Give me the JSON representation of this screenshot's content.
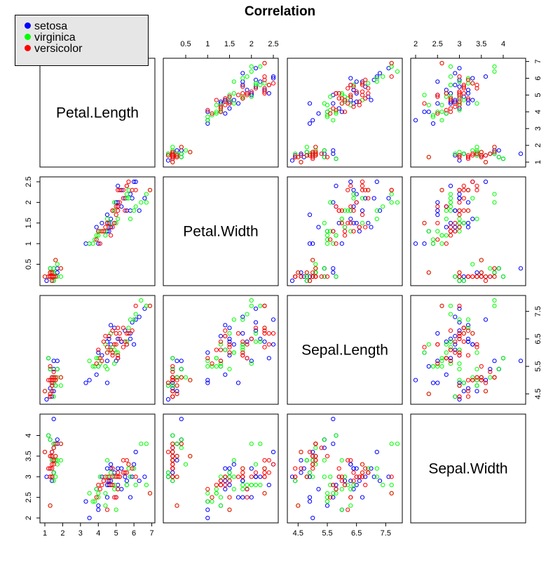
{
  "chart_data": {
    "type": "scatter",
    "title": "Correlation",
    "variables": [
      "Petal.Length",
      "Petal.Width",
      "Sepal.Length",
      "Sepal.Width"
    ],
    "ranges": {
      "Petal.Length": [
        1,
        6.9
      ],
      "Petal.Width": [
        0.1,
        2.5
      ],
      "Sepal.Length": [
        4.3,
        7.9
      ],
      "Sepal.Width": [
        2.0,
        4.4
      ]
    },
    "ticks": {
      "Petal.Length": [
        1,
        2,
        3,
        4,
        5,
        6,
        7
      ],
      "Petal.Width": [
        0.5,
        1.0,
        1.5,
        2.0,
        2.5
      ],
      "Sepal.Length": [
        4.5,
        5.5,
        6.5,
        7.5
      ],
      "Sepal.Width": [
        2.0,
        2.5,
        3.0,
        3.5,
        4.0
      ]
    },
    "grid": false,
    "legend_position": "top-left",
    "series": [
      {
        "name": "setosa",
        "color": "#0000ff",
        "points": [
          [
            1.4,
            0.2,
            5.1,
            3.5
          ],
          [
            1.4,
            0.2,
            4.9,
            3.0
          ],
          [
            1.3,
            0.2,
            4.7,
            3.2
          ],
          [
            1.5,
            0.2,
            4.6,
            3.1
          ],
          [
            1.4,
            0.2,
            5.0,
            3.6
          ],
          [
            1.7,
            0.4,
            5.4,
            3.9
          ],
          [
            1.4,
            0.3,
            4.6,
            3.4
          ],
          [
            1.5,
            0.2,
            5.0,
            3.4
          ],
          [
            1.4,
            0.2,
            4.4,
            2.9
          ],
          [
            1.5,
            0.1,
            4.9,
            3.1
          ],
          [
            1.5,
            0.2,
            5.4,
            3.7
          ],
          [
            1.6,
            0.2,
            4.8,
            3.4
          ],
          [
            1.4,
            0.1,
            4.8,
            3.0
          ],
          [
            1.1,
            0.1,
            4.3,
            3.0
          ],
          [
            1.2,
            0.2,
            5.8,
            4.0
          ],
          [
            1.5,
            0.4,
            5.7,
            4.4
          ],
          [
            1.3,
            0.4,
            5.4,
            3.9
          ],
          [
            1.4,
            0.3,
            5.1,
            3.5
          ],
          [
            1.7,
            0.3,
            5.7,
            3.8
          ],
          [
            1.5,
            0.3,
            5.1,
            3.8
          ],
          [
            4.7,
            1.4,
            7.0,
            3.2
          ],
          [
            4.5,
            1.5,
            6.4,
            3.2
          ],
          [
            4.9,
            1.5,
            6.9,
            3.1
          ],
          [
            4.0,
            1.3,
            5.5,
            2.3
          ],
          [
            4.6,
            1.5,
            6.5,
            2.8
          ],
          [
            4.5,
            1.3,
            5.7,
            2.8
          ],
          [
            4.7,
            1.6,
            6.3,
            3.3
          ],
          [
            3.3,
            1.0,
            4.9,
            2.4
          ],
          [
            4.6,
            1.3,
            6.6,
            2.9
          ],
          [
            3.9,
            1.4,
            5.2,
            2.7
          ],
          [
            3.5,
            1.0,
            5.0,
            2.0
          ],
          [
            4.2,
            1.5,
            5.9,
            3.0
          ],
          [
            4.0,
            1.0,
            6.0,
            2.2
          ],
          [
            4.7,
            1.4,
            6.1,
            2.9
          ],
          [
            6.0,
            2.5,
            6.3,
            3.3
          ],
          [
            5.1,
            1.9,
            5.8,
            2.7
          ],
          [
            5.9,
            2.1,
            7.1,
            3.0
          ],
          [
            5.6,
            1.8,
            6.3,
            2.9
          ],
          [
            5.8,
            2.2,
            6.5,
            3.0
          ],
          [
            6.6,
            2.1,
            7.6,
            3.0
          ],
          [
            4.5,
            1.7,
            4.9,
            2.5
          ],
          [
            6.3,
            1.8,
            7.3,
            2.9
          ],
          [
            5.8,
            1.8,
            6.7,
            2.5
          ],
          [
            6.1,
            2.5,
            7.2,
            3.6
          ],
          [
            5.1,
            2.0,
            6.5,
            3.2
          ],
          [
            5.3,
            1.9,
            6.4,
            2.7
          ],
          [
            5.5,
            2.1,
            6.8,
            3.0
          ],
          [
            5.0,
            2.0,
            5.7,
            2.5
          ],
          [
            5.1,
            2.4,
            5.8,
            2.8
          ],
          [
            5.3,
            2.3,
            6.4,
            3.2
          ]
        ]
      },
      {
        "name": "virginica",
        "color": "#00ff00",
        "points": [
          [
            1.4,
            0.2,
            5.0,
            3.4
          ],
          [
            1.5,
            0.2,
            4.4,
            2.9
          ],
          [
            1.5,
            0.1,
            4.9,
            3.1
          ],
          [
            1.6,
            0.2,
            4.8,
            3.4
          ],
          [
            1.4,
            0.1,
            4.8,
            3.0
          ],
          [
            1.2,
            0.2,
            5.8,
            4.0
          ],
          [
            1.3,
            0.4,
            5.4,
            3.9
          ],
          [
            1.4,
            0.3,
            5.1,
            3.5
          ],
          [
            1.5,
            0.3,
            5.1,
            3.8
          ],
          [
            1.7,
            0.2,
            5.4,
            3.4
          ],
          [
            1.5,
            0.4,
            5.1,
            3.7
          ],
          [
            1.0,
            0.2,
            4.6,
            3.6
          ],
          [
            1.7,
            0.5,
            5.1,
            3.3
          ],
          [
            1.9,
            0.2,
            4.8,
            3.4
          ],
          [
            1.6,
            0.2,
            5.0,
            3.0
          ],
          [
            1.3,
            0.3,
            4.5,
            2.3
          ],
          [
            1.6,
            0.6,
            5.0,
            3.5
          ],
          [
            1.9,
            0.4,
            5.1,
            3.8
          ],
          [
            1.4,
            0.3,
            4.8,
            3.0
          ],
          [
            1.6,
            0.2,
            5.1,
            3.8
          ],
          [
            3.5,
            1.0,
            5.7,
            2.6
          ],
          [
            3.8,
            1.1,
            5.5,
            2.4
          ],
          [
            3.7,
            1.0,
            5.5,
            2.4
          ],
          [
            3.9,
            1.2,
            5.8,
            2.7
          ],
          [
            5.1,
            1.6,
            6.0,
            2.7
          ],
          [
            4.5,
            1.5,
            5.4,
            3.0
          ],
          [
            4.5,
            1.6,
            6.0,
            3.4
          ],
          [
            4.7,
            1.5,
            6.7,
            3.1
          ],
          [
            4.4,
            1.3,
            6.3,
            2.3
          ],
          [
            4.1,
            1.3,
            5.6,
            3.0
          ],
          [
            4.0,
            1.3,
            5.5,
            2.5
          ],
          [
            4.4,
            1.2,
            5.5,
            2.6
          ],
          [
            4.6,
            1.4,
            6.1,
            3.0
          ],
          [
            4.0,
            1.2,
            5.8,
            2.6
          ],
          [
            6.7,
            2.2,
            7.7,
            3.8
          ],
          [
            6.9,
            2.3,
            7.7,
            2.6
          ],
          [
            5.0,
            1.5,
            6.0,
            2.2
          ],
          [
            5.7,
            2.3,
            6.9,
            3.2
          ],
          [
            4.9,
            2.0,
            5.6,
            2.8
          ],
          [
            6.7,
            2.0,
            7.7,
            2.8
          ],
          [
            4.9,
            1.8,
            6.3,
            2.7
          ],
          [
            5.7,
            2.1,
            6.7,
            3.3
          ],
          [
            6.0,
            1.8,
            7.2,
            3.2
          ],
          [
            4.8,
            1.8,
            6.2,
            2.8
          ],
          [
            4.9,
            1.8,
            6.1,
            3.0
          ],
          [
            5.6,
            2.1,
            6.4,
            2.8
          ],
          [
            5.8,
            1.6,
            7.2,
            3.0
          ],
          [
            6.1,
            1.9,
            7.4,
            2.8
          ],
          [
            6.4,
            2.0,
            7.9,
            3.8
          ],
          [
            5.6,
            2.2,
            6.4,
            2.8
          ]
        ]
      },
      {
        "name": "versicolor",
        "color": "#ff0000",
        "points": [
          [
            1.5,
            0.2,
            5.0,
            3.3
          ],
          [
            1.4,
            0.2,
            5.1,
            3.5
          ],
          [
            1.3,
            0.2,
            4.4,
            3.0
          ],
          [
            1.5,
            0.2,
            5.1,
            3.4
          ],
          [
            1.3,
            0.3,
            5.0,
            3.5
          ],
          [
            1.3,
            0.3,
            4.5,
            2.3
          ],
          [
            1.3,
            0.2,
            4.4,
            3.2
          ],
          [
            1.6,
            0.6,
            5.0,
            3.5
          ],
          [
            1.9,
            0.4,
            5.1,
            3.8
          ],
          [
            1.4,
            0.3,
            4.8,
            3.0
          ],
          [
            1.6,
            0.2,
            5.1,
            3.8
          ],
          [
            1.4,
            0.2,
            4.6,
            3.2
          ],
          [
            1.5,
            0.2,
            5.3,
            3.7
          ],
          [
            1.4,
            0.2,
            5.0,
            3.3
          ],
          [
            1.2,
            0.2,
            5.0,
            3.2
          ],
          [
            1.3,
            0.2,
            5.5,
            3.5
          ],
          [
            1.4,
            0.1,
            4.9,
            3.6
          ],
          [
            1.3,
            0.2,
            4.4,
            3.0
          ],
          [
            1.5,
            0.2,
            5.1,
            3.4
          ],
          [
            1.0,
            0.2,
            4.6,
            3.6
          ],
          [
            4.1,
            1.0,
            5.8,
            2.7
          ],
          [
            4.5,
            1.5,
            6.2,
            2.2
          ],
          [
            3.9,
            1.1,
            5.6,
            2.5
          ],
          [
            4.8,
            1.8,
            5.9,
            3.2
          ],
          [
            4.0,
            1.3,
            6.1,
            2.8
          ],
          [
            4.9,
            1.5,
            6.3,
            2.5
          ],
          [
            4.7,
            1.2,
            6.1,
            2.8
          ],
          [
            4.3,
            1.3,
            6.4,
            2.9
          ],
          [
            4.4,
            1.4,
            6.6,
            3.0
          ],
          [
            4.8,
            1.4,
            6.8,
            2.8
          ],
          [
            5.0,
            1.7,
            6.7,
            3.0
          ],
          [
            4.5,
            1.5,
            6.0,
            2.9
          ],
          [
            4.2,
            1.3,
            5.7,
            2.8
          ],
          [
            4.6,
            1.4,
            6.6,
            3.0
          ],
          [
            6.1,
            2.3,
            7.7,
            3.0
          ],
          [
            5.6,
            2.4,
            6.3,
            3.4
          ],
          [
            5.5,
            1.8,
            6.4,
            3.1
          ],
          [
            4.8,
            1.8,
            6.0,
            3.0
          ],
          [
            5.4,
            2.1,
            6.9,
            3.1
          ],
          [
            5.6,
            2.4,
            6.7,
            3.1
          ],
          [
            5.1,
            2.3,
            6.9,
            3.1
          ],
          [
            5.1,
            1.9,
            5.8,
            2.7
          ],
          [
            5.9,
            2.3,
            6.8,
            3.2
          ],
          [
            5.7,
            2.5,
            6.7,
            3.3
          ],
          [
            5.2,
            2.3,
            6.7,
            3.0
          ],
          [
            5.0,
            1.9,
            6.3,
            2.5
          ],
          [
            5.2,
            2.0,
            6.5,
            3.0
          ],
          [
            5.4,
            2.3,
            6.2,
            3.4
          ],
          [
            5.1,
            1.8,
            5.9,
            3.0
          ],
          [
            6.9,
            2.3,
            7.7,
            2.6
          ]
        ]
      }
    ]
  }
}
